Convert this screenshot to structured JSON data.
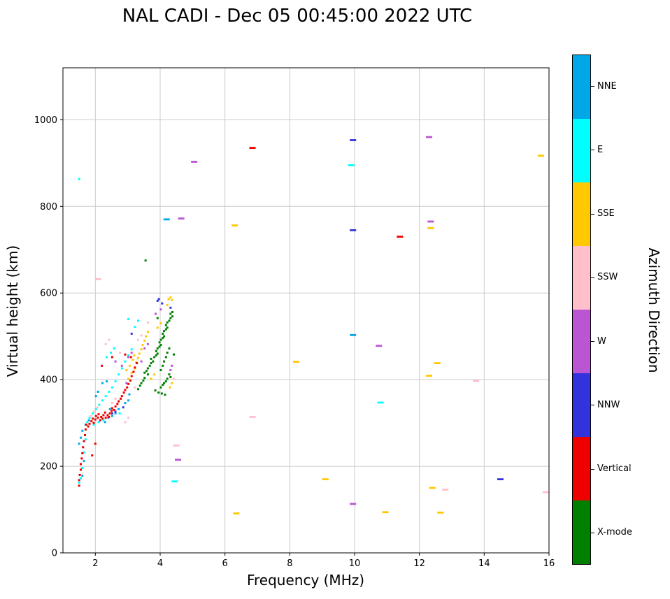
{
  "chart_data": {
    "type": "scatter",
    "title": "NAL CADI - Dec 05 00:45:00 2022 UTC",
    "xlabel": "Frequency (MHz)",
    "ylabel": "Virtual height (km)",
    "colorbar_label": "Azimuth Direction",
    "xlim": [
      1,
      16
    ],
    "ylim": [
      0,
      1120
    ],
    "xticks": [
      2,
      4,
      6,
      8,
      10,
      12,
      14,
      16
    ],
    "yticks": [
      0,
      200,
      400,
      600,
      800,
      1000
    ],
    "grid": true,
    "grid_color": "#cccccc",
    "legend_position": "right-colorbar",
    "point_format": "[frequency_MHz, virtual_height_km]",
    "directions": [
      {
        "name": "NNE",
        "color": "#00a8e8",
        "squares": [
          [
            1.5,
            252
          ],
          [
            1.55,
            266
          ],
          [
            1.6,
            282
          ],
          [
            1.7,
            296
          ],
          [
            1.8,
            306
          ],
          [
            2.3,
            302
          ],
          [
            2.4,
            312
          ],
          [
            2.52,
            316
          ],
          [
            2.62,
            322
          ],
          [
            2.72,
            332
          ],
          [
            2.45,
            332
          ],
          [
            2.02,
            362
          ],
          [
            2.08,
            372
          ],
          [
            2.92,
            346
          ],
          [
            3.02,
            352
          ],
          [
            1.65,
            212
          ],
          [
            1.6,
            178
          ],
          [
            2.22,
            392
          ],
          [
            2.35,
            396
          ],
          [
            3.05,
            366
          ]
        ],
        "dashes": [
          [
            9.95,
            503
          ],
          [
            4.2,
            770
          ]
        ]
      },
      {
        "name": "E",
        "color": "#00ffff",
        "squares": [
          [
            1.5,
            162
          ],
          [
            1.55,
            172
          ],
          [
            1.6,
            196
          ],
          [
            1.65,
            232
          ],
          [
            1.7,
            262
          ],
          [
            1.75,
            302
          ],
          [
            1.82,
            312
          ],
          [
            1.92,
            322
          ],
          [
            2.02,
            332
          ],
          [
            2.12,
            342
          ],
          [
            2.22,
            352
          ],
          [
            2.32,
            362
          ],
          [
            2.42,
            372
          ],
          [
            2.52,
            382
          ],
          [
            2.62,
            396
          ],
          [
            2.72,
            412
          ],
          [
            2.82,
            426
          ],
          [
            2.92,
            442
          ],
          [
            3.02,
            456
          ],
          [
            3.12,
            470
          ],
          [
            2.35,
            452
          ],
          [
            2.48,
            462
          ],
          [
            2.58,
            472
          ],
          [
            3.22,
            522
          ],
          [
            3.32,
            536
          ],
          [
            3.02,
            540
          ],
          [
            2.1,
            302
          ],
          [
            2.25,
            306
          ],
          [
            1.95,
            296
          ],
          [
            2.75,
            322
          ],
          [
            1.5,
            863
          ]
        ],
        "dashes": [
          [
            9.9,
            895
          ],
          [
            10.8,
            347
          ],
          [
            4.45,
            165
          ]
        ]
      },
      {
        "name": "SSE",
        "color": "#ffc800",
        "squares": [
          [
            3.02,
            402
          ],
          [
            3.12,
            416
          ],
          [
            3.22,
            426
          ],
          [
            3.26,
            440
          ],
          [
            3.32,
            450
          ],
          [
            3.36,
            460
          ],
          [
            3.42,
            470
          ],
          [
            3.2,
            456
          ],
          [
            3.16,
            446
          ],
          [
            3.46,
            480
          ],
          [
            3.52,
            490
          ],
          [
            3.56,
            500
          ],
          [
            3.62,
            510
          ],
          [
            3.92,
            520
          ],
          [
            4.02,
            530
          ],
          [
            4.26,
            586
          ],
          [
            4.32,
            590
          ],
          [
            4.36,
            584
          ],
          [
            3.72,
            402
          ],
          [
            3.82,
            412
          ],
          [
            4.3,
            382
          ],
          [
            4.36,
            392
          ],
          [
            3.06,
            432
          ],
          [
            2.96,
            422
          ],
          [
            4.22,
            572
          ]
        ],
        "dashes": [
          [
            15.75,
            917
          ],
          [
            6.3,
            756
          ],
          [
            12.35,
            750
          ],
          [
            8.2,
            441
          ],
          [
            12.3,
            409
          ],
          [
            12.55,
            438
          ],
          [
            9.1,
            170
          ],
          [
            12.4,
            150
          ],
          [
            6.35,
            91
          ],
          [
            10.95,
            94
          ],
          [
            12.65,
            93
          ]
        ]
      },
      {
        "name": "SSW",
        "color": "#ffc0cb",
        "squares": [
          [
            1.86,
            316
          ],
          [
            1.96,
            326
          ],
          [
            2.06,
            336
          ],
          [
            2.52,
            346
          ],
          [
            2.62,
            356
          ],
          [
            3.32,
            492
          ],
          [
            3.42,
            502
          ],
          [
            2.92,
            302
          ],
          [
            3.02,
            312
          ],
          [
            4.42,
            402
          ],
          [
            2.32,
            482
          ],
          [
            2.42,
            492
          ],
          [
            3.62,
            532
          ],
          [
            2.76,
            462
          ],
          [
            3.22,
            382
          ]
        ],
        "dashes": [
          [
            2.08,
            632
          ],
          [
            13.75,
            397
          ],
          [
            6.85,
            314
          ],
          [
            4.5,
            248
          ],
          [
            12.8,
            146
          ],
          [
            15.9,
            140
          ]
        ]
      },
      {
        "name": "W",
        "color": "#ba55d3",
        "squares": [
          [
            3.02,
            452
          ],
          [
            3.12,
            462
          ],
          [
            2.82,
            432
          ],
          [
            3.52,
            472
          ],
          [
            3.62,
            482
          ],
          [
            4.32,
            422
          ],
          [
            4.36,
            432
          ],
          [
            2.62,
            442
          ],
          [
            4.02,
            562
          ],
          [
            3.86,
            552
          ],
          [
            2.96,
            392
          ],
          [
            3.42,
            442
          ]
        ],
        "dashes": [
          [
            5.05,
            903
          ],
          [
            12.3,
            960
          ],
          [
            12.35,
            765
          ],
          [
            10.75,
            478
          ],
          [
            4.55,
            215
          ],
          [
            9.95,
            113
          ],
          [
            4.65,
            772
          ]
        ]
      },
      {
        "name": "NNW",
        "color": "#3333dd",
        "squares": [
          [
            2.52,
            322
          ],
          [
            2.62,
            326
          ],
          [
            3.92,
            582
          ],
          [
            3.96,
            586
          ],
          [
            4.06,
            576
          ],
          [
            2.86,
            336
          ],
          [
            3.12,
            506
          ],
          [
            4.32,
            566
          ]
        ],
        "dashes": [
          [
            9.95,
            953
          ],
          [
            9.95,
            745
          ],
          [
            14.5,
            170
          ]
        ]
      },
      {
        "name": "Vertical",
        "color": "#ee0000",
        "squares": [
          [
            1.5,
            155
          ],
          [
            1.5,
            168
          ],
          [
            1.52,
            180
          ],
          [
            1.55,
            192
          ],
          [
            1.55,
            205
          ],
          [
            1.58,
            218
          ],
          [
            1.6,
            230
          ],
          [
            1.62,
            244
          ],
          [
            1.65,
            258
          ],
          [
            1.68,
            272
          ],
          [
            1.7,
            285
          ],
          [
            1.72,
            296
          ],
          [
            1.78,
            292
          ],
          [
            1.82,
            298
          ],
          [
            1.88,
            304
          ],
          [
            1.92,
            310
          ],
          [
            1.95,
            300
          ],
          [
            2.0,
            308
          ],
          [
            2.02,
            316
          ],
          [
            2.08,
            312
          ],
          [
            2.1,
            320
          ],
          [
            2.15,
            306
          ],
          [
            2.18,
            314
          ],
          [
            2.22,
            310
          ],
          [
            2.25,
            318
          ],
          [
            2.3,
            324
          ],
          [
            2.32,
            312
          ],
          [
            2.38,
            318
          ],
          [
            2.42,
            314
          ],
          [
            2.45,
            322
          ],
          [
            2.5,
            328
          ],
          [
            2.52,
            334
          ],
          [
            2.58,
            330
          ],
          [
            2.62,
            338
          ],
          [
            2.68,
            344
          ],
          [
            2.72,
            350
          ],
          [
            2.78,
            356
          ],
          [
            2.82,
            362
          ],
          [
            2.88,
            370
          ],
          [
            2.92,
            376
          ],
          [
            2.98,
            382
          ],
          [
            3.02,
            390
          ],
          [
            3.08,
            398
          ],
          [
            3.12,
            408
          ],
          [
            3.18,
            418
          ],
          [
            3.22,
            428
          ],
          [
            3.28,
            438
          ],
          [
            3.1,
            452
          ],
          [
            2.92,
            458
          ],
          [
            2.2,
            432
          ],
          [
            2.52,
            452
          ],
          [
            1.9,
            225
          ],
          [
            2.0,
            252
          ]
        ],
        "dashes": [
          [
            6.85,
            935
          ],
          [
            11.4,
            730
          ]
        ]
      },
      {
        "name": "X-mode",
        "color": "#008000",
        "squares": [
          [
            3.32,
            378
          ],
          [
            3.38,
            386
          ],
          [
            3.42,
            392
          ],
          [
            3.48,
            398
          ],
          [
            3.52,
            404
          ],
          [
            3.52,
            416
          ],
          [
            3.58,
            420
          ],
          [
            3.62,
            412
          ],
          [
            3.62,
            426
          ],
          [
            3.68,
            432
          ],
          [
            3.72,
            438
          ],
          [
            3.72,
            448
          ],
          [
            3.78,
            442
          ],
          [
            3.82,
            452
          ],
          [
            3.88,
            456
          ],
          [
            3.88,
            466
          ],
          [
            3.92,
            460
          ],
          [
            3.92,
            472
          ],
          [
            3.98,
            476
          ],
          [
            3.98,
            486
          ],
          [
            4.02,
            480
          ],
          [
            4.02,
            492
          ],
          [
            4.08,
            496
          ],
          [
            4.08,
            506
          ],
          [
            4.12,
            500
          ],
          [
            4.12,
            512
          ],
          [
            4.18,
            516
          ],
          [
            4.18,
            526
          ],
          [
            4.22,
            520
          ],
          [
            4.22,
            532
          ],
          [
            4.28,
            536
          ],
          [
            4.32,
            542
          ],
          [
            4.32,
            552
          ],
          [
            4.38,
            546
          ],
          [
            4.38,
            556
          ],
          [
            4.02,
            382
          ],
          [
            4.08,
            388
          ],
          [
            4.12,
            392
          ],
          [
            4.18,
            396
          ],
          [
            4.22,
            402
          ],
          [
            4.02,
            422
          ],
          [
            4.08,
            432
          ],
          [
            4.12,
            442
          ],
          [
            4.18,
            452
          ],
          [
            4.22,
            462
          ],
          [
            4.28,
            472
          ],
          [
            3.92,
            542
          ],
          [
            3.55,
            675
          ],
          [
            4.42,
            458
          ],
          [
            4.28,
            412
          ],
          [
            4.32,
            406
          ],
          [
            3.85,
            375
          ],
          [
            3.95,
            370
          ],
          [
            4.05,
            368
          ],
          [
            4.15,
            365
          ]
        ],
        "dashes": []
      }
    ]
  }
}
